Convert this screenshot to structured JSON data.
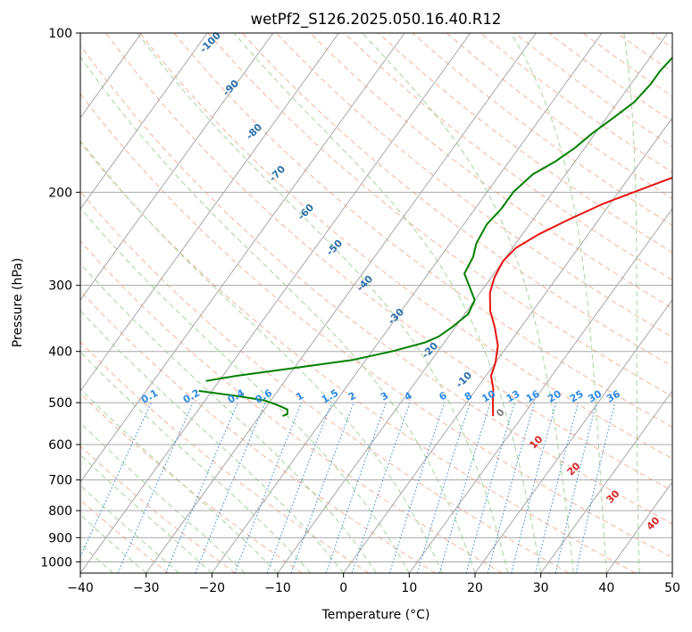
{
  "chart_data": {
    "type": "line",
    "title": "wetPf2_S126.2025.050.16.40.R12",
    "xlabel": "Temperature (°C)",
    "ylabel": "Pressure (hPa)",
    "xlim": [
      -40,
      50
    ],
    "ylim_hpa": [
      1050,
      100
    ],
    "y_scale": "log",
    "grid": true,
    "x_ticks": [
      -40,
      -30,
      -20,
      -10,
      0,
      10,
      20,
      30,
      40,
      50
    ],
    "y_ticks": [
      100,
      200,
      300,
      400,
      500,
      600,
      700,
      800,
      900,
      1000
    ],
    "series": [
      {
        "role": "temperature",
        "color": "#e8130f",
        "points": [
          {
            "p": 100,
            "t": 28.5
          },
          {
            "p": 110,
            "t": 26.5
          },
          {
            "p": 120,
            "t": 24.5
          },
          {
            "p": 135,
            "t": 21.5
          },
          {
            "p": 150,
            "t": 18.0
          },
          {
            "p": 165,
            "t": 14.5
          },
          {
            "p": 180,
            "t": 9.5
          },
          {
            "p": 195,
            "t": 4.0
          },
          {
            "p": 210,
            "t": -1.0
          },
          {
            "p": 225,
            "t": -4.5
          },
          {
            "p": 240,
            "t": -7.5
          },
          {
            "p": 255,
            "t": -9.5
          },
          {
            "p": 270,
            "t": -10.0
          },
          {
            "p": 290,
            "t": -9.5
          },
          {
            "p": 310,
            "t": -8.5
          },
          {
            "p": 335,
            "t": -6.5
          },
          {
            "p": 360,
            "t": -4.0
          },
          {
            "p": 390,
            "t": -1.5
          },
          {
            "p": 420,
            "t": 0.0
          },
          {
            "p": 445,
            "t": 0.8
          },
          {
            "p": 470,
            "t": 2.5
          },
          {
            "p": 500,
            "t": 4.0
          },
          {
            "p": 530,
            "t": 5.5
          }
        ]
      },
      {
        "role": "dewpoint",
        "color": "#008000",
        "points": [
          {
            "p": 100,
            "t": -5.0
          },
          {
            "p": 105,
            "t": -5.0
          },
          {
            "p": 110,
            "t": -6.5
          },
          {
            "p": 118,
            "t": -7.0
          },
          {
            "p": 125,
            "t": -7.0
          },
          {
            "p": 135,
            "t": -7.5
          },
          {
            "p": 145,
            "t": -9.0
          },
          {
            "p": 155,
            "t": -10.5
          },
          {
            "p": 165,
            "t": -11.5
          },
          {
            "p": 175,
            "t": -13.0
          },
          {
            "p": 185,
            "t": -15.0
          },
          {
            "p": 200,
            "t": -16.0
          },
          {
            "p": 215,
            "t": -16.0
          },
          {
            "p": 230,
            "t": -16.5
          },
          {
            "p": 250,
            "t": -16.0
          },
          {
            "p": 265,
            "t": -15.0
          },
          {
            "p": 285,
            "t": -14.5
          },
          {
            "p": 300,
            "t": -12.5
          },
          {
            "p": 320,
            "t": -10.0
          },
          {
            "p": 340,
            "t": -9.5
          },
          {
            "p": 360,
            "t": -10.5
          },
          {
            "p": 375,
            "t": -11.5
          },
          {
            "p": 385,
            "t": -13.0
          },
          {
            "p": 400,
            "t": -17.0
          },
          {
            "p": 415,
            "t": -22.0
          },
          {
            "p": 430,
            "t": -30.0
          },
          {
            "p": 445,
            "t": -38.0
          },
          {
            "p": 455,
            "t": -42.0
          }
        ],
        "points_lower": [
          {
            "p": 475,
            "t": -42.0
          },
          {
            "p": 485,
            "t": -36.0
          },
          {
            "p": 495,
            "t": -31.0
          },
          {
            "p": 505,
            "t": -28.5
          },
          {
            "p": 515,
            "t": -26.5
          },
          {
            "p": 525,
            "t": -26.0
          },
          {
            "p": 530,
            "t": -26.5
          }
        ]
      }
    ],
    "dry_adiabat_labels": [
      -100,
      -90,
      -80,
      -70,
      -60,
      -50,
      -40,
      -30,
      -20,
      -10
    ],
    "mixing_ratio_labels": [
      "0.1",
      "0.2",
      "0.4",
      "0.6",
      "1",
      "1.5",
      "2",
      "3",
      "4",
      "6",
      "8",
      "10",
      "13",
      "16",
      "20",
      "25",
      "30",
      "36"
    ],
    "moist_adiabat_labels": [
      "0",
      "10",
      "20",
      "30",
      "40"
    ],
    "colors": {
      "isotherm": "#a8a8a8",
      "dry_adiabat": "#f7b39c",
      "moist_adiabat": "#a6d49e",
      "mixing_ratio": "#2b84d8",
      "dry_label": "#2b6fa8",
      "moist_label": "#d62728",
      "mixing_label": "#2e8ae6"
    }
  }
}
